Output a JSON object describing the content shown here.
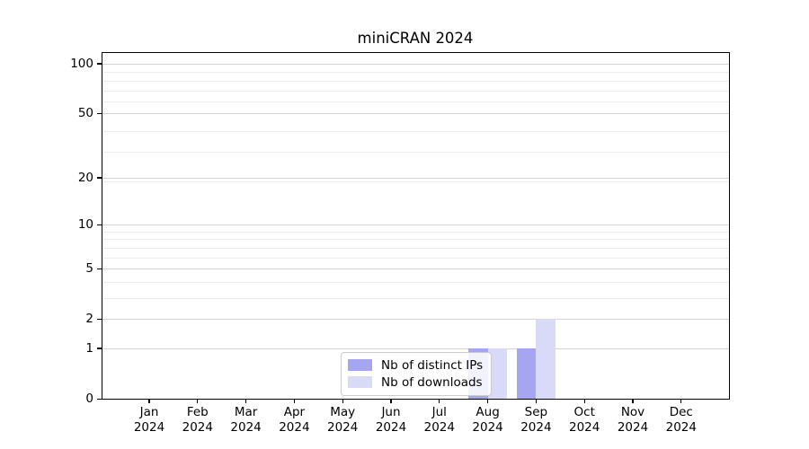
{
  "chart_data": {
    "type": "bar",
    "title": "miniCRAN 2024",
    "y_scale": "log1p",
    "grid": "horizontal",
    "legend_position": "lower-center-inside",
    "x_year": "2024",
    "categories": [
      "Jan",
      "Feb",
      "Mar",
      "Apr",
      "May",
      "Jun",
      "Jul",
      "Aug",
      "Sep",
      "Oct",
      "Nov",
      "Dec"
    ],
    "series": [
      {
        "name": "Nb of distinct IPs",
        "color": "#a5a5f0",
        "values": [
          0,
          0,
          0,
          0,
          0,
          0,
          0,
          1,
          1,
          0,
          0,
          0
        ]
      },
      {
        "name": "Nb of downloads",
        "color": "#d9d9f8",
        "values": [
          0,
          0,
          0,
          0,
          0,
          0,
          0,
          1,
          2,
          0,
          0,
          0
        ]
      }
    ],
    "y_ticks_major": [
      0,
      1,
      2,
      5,
      10,
      20,
      50,
      100
    ],
    "y_gridlines_minor": [
      3,
      4,
      6,
      7,
      8,
      9,
      19,
      29,
      39,
      59,
      69,
      79,
      89
    ],
    "ylim": [
      0,
      116
    ],
    "colors": {
      "grid_major": "#d3d3d3",
      "grid_minor": "#ececec",
      "axis": "#000000",
      "text": "#000000",
      "legend_border": "#cbcbcb"
    }
  }
}
